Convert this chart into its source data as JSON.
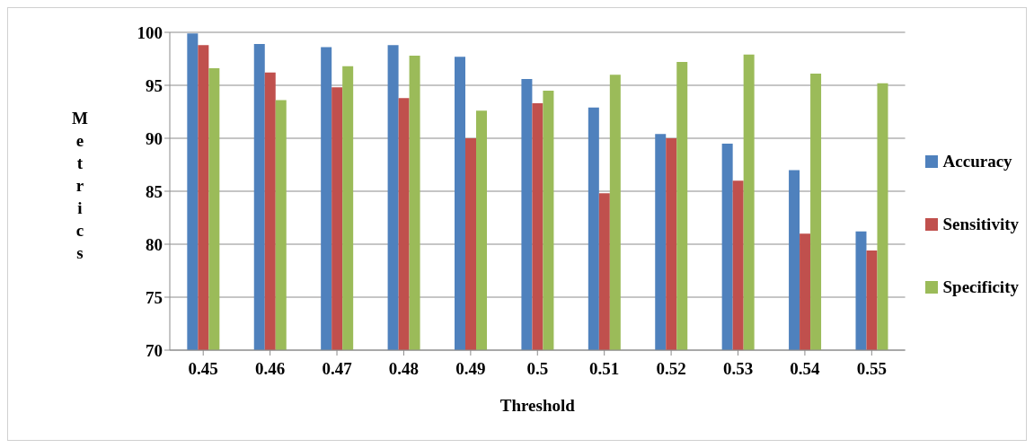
{
  "chart_data": {
    "type": "bar",
    "xlabel": "Threshold",
    "ylabel": "Metrics",
    "categories": [
      "0.45",
      "0.46",
      "0.47",
      "0.48",
      "0.49",
      "0.5",
      "0.51",
      "0.52",
      "0.53",
      "0.54",
      "0.55"
    ],
    "series": [
      {
        "name": "Accuracy",
        "color": "#4f81bd",
        "values": [
          99.9,
          98.9,
          98.6,
          98.8,
          97.7,
          95.6,
          92.9,
          90.4,
          89.5,
          87.0,
          81.2
        ]
      },
      {
        "name": "Sensitivity",
        "color": "#c0504d",
        "values": [
          98.8,
          96.2,
          94.8,
          93.8,
          90.0,
          93.3,
          84.8,
          90.0,
          86.0,
          81.0,
          79.4
        ]
      },
      {
        "name": "Specificity",
        "color": "#9bbb59",
        "values": [
          96.6,
          93.6,
          96.8,
          97.8,
          92.6,
          94.5,
          96.0,
          97.2,
          97.9,
          96.1,
          95.2
        ]
      }
    ],
    "ylim": [
      70,
      100
    ],
    "yticks": [
      70,
      75,
      80,
      85,
      90,
      95,
      100
    ],
    "grid": "y",
    "legend": "right"
  }
}
